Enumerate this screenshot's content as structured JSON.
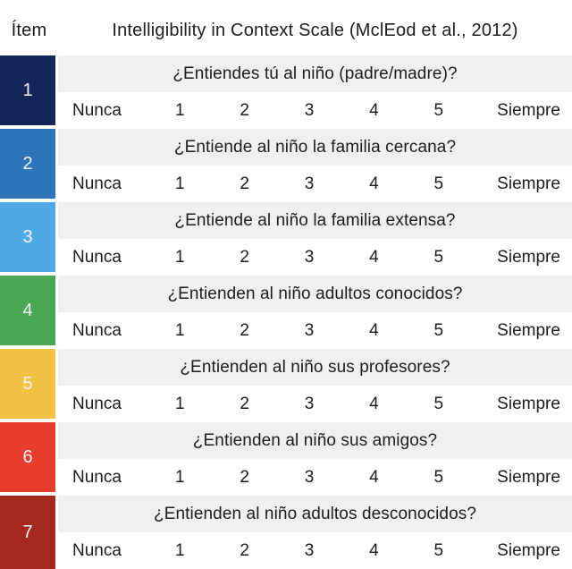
{
  "header": {
    "item_label": "Ítem",
    "title": "Intelligibility in Context Scale (MclEod et al., 2012)"
  },
  "scale": {
    "min_label": "Nunca",
    "max_label": "Siempre",
    "points": [
      "1",
      "2",
      "3",
      "4",
      "5"
    ]
  },
  "colors": {
    "question_band_bg": "#f0f0ef",
    "text": "#1c1c1c",
    "row_colors": [
      "#14265a",
      "#2e74b9",
      "#4fa9e4",
      "#4ba754",
      "#f2c342",
      "#e73b2b",
      "#a52a1e"
    ]
  },
  "rows": [
    {
      "number": "1",
      "question": "¿Entiendes tú al niño (padre/madre)?",
      "color": "#14265a"
    },
    {
      "number": "2",
      "question": "¿Entiende al niño la familia cercana?",
      "color": "#2e74b9"
    },
    {
      "number": "3",
      "question": "¿Entiende al niño la familia extensa?",
      "color": "#4fa9e4"
    },
    {
      "number": "4",
      "question": "¿Entienden al niño adultos conocidos?",
      "color": "#4ba754"
    },
    {
      "number": "5",
      "question": "¿Entienden al niño sus profesores?",
      "color": "#f2c342"
    },
    {
      "number": "6",
      "question": "¿Entienden al niño sus amigos?",
      "color": "#e73b2b"
    },
    {
      "number": "7",
      "question": "¿Entienden al niño adultos desconocidos?",
      "color": "#a52a1e"
    }
  ]
}
